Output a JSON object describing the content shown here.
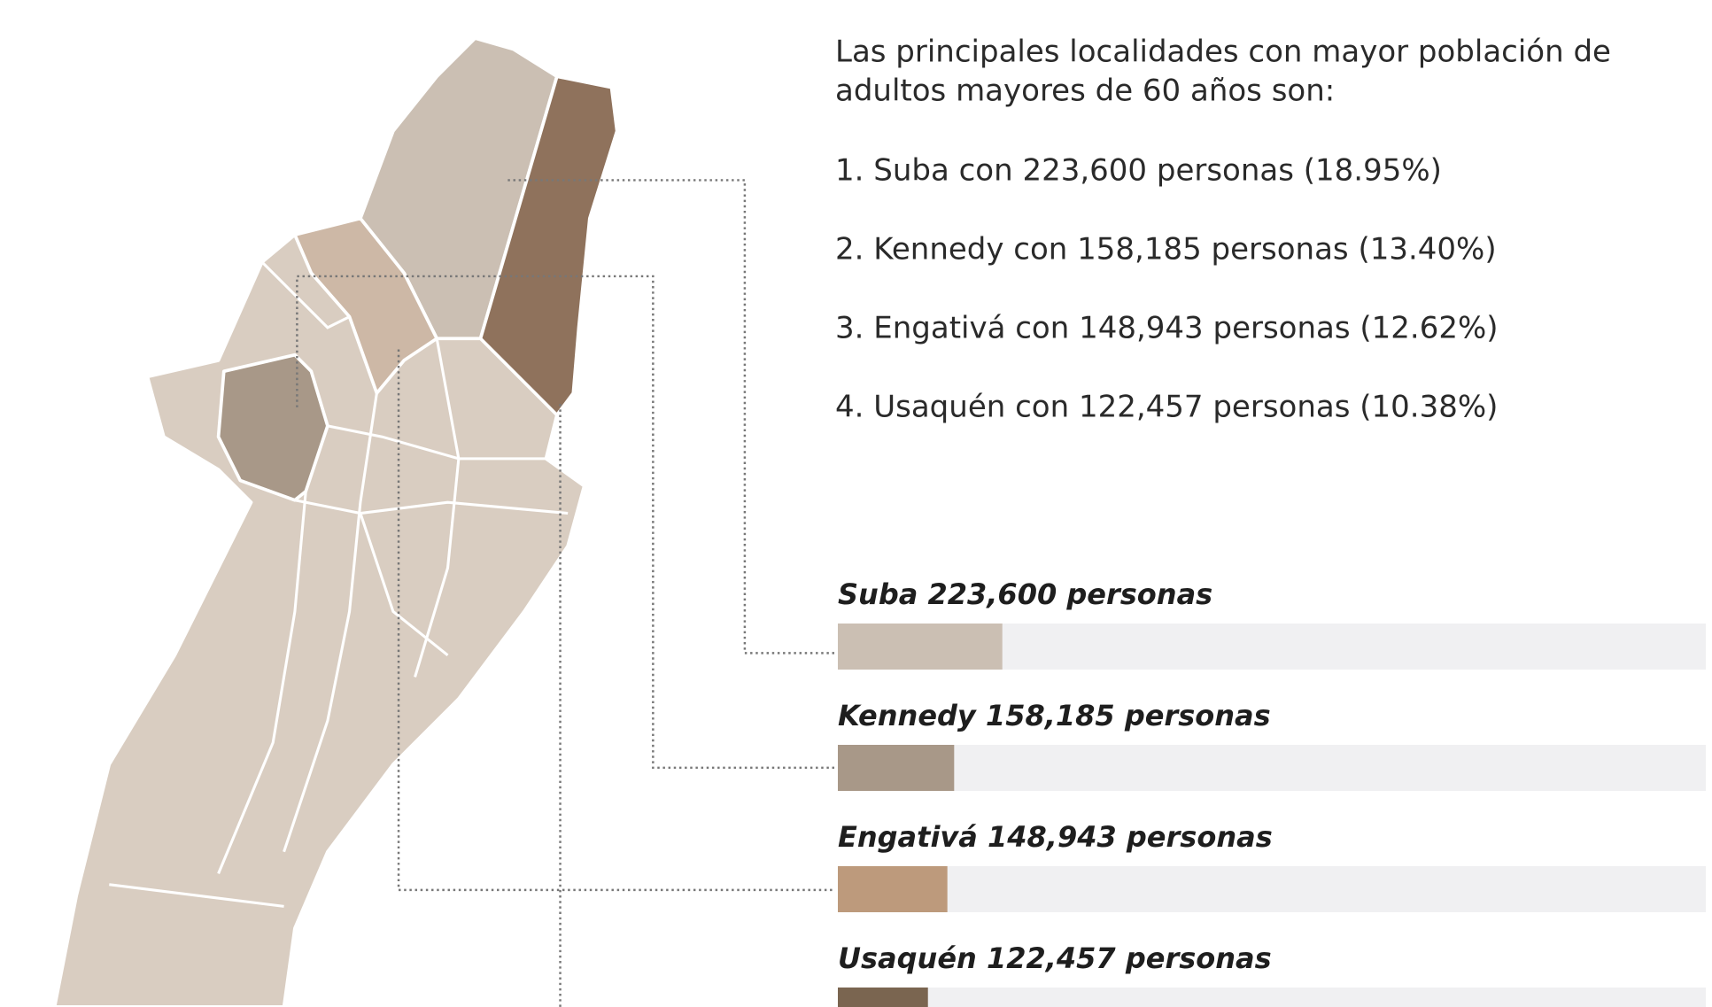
{
  "chart_data": {
    "type": "bar",
    "title": [
      "Las principales localidades con mayor población de",
      "adultos mayores de 60 años son:"
    ],
    "items": [
      "1. Suba con 223,600 personas (18.95%)",
      "2. Kennedy con 158,185 personas (13.40%)",
      "3. Engativá con 148,943 personas (12.62%)",
      "4. Usaquén con 122,457 personas (10.38%)"
    ],
    "categories": [
      "Suba 223,600 personas",
      "Kennedy 158,185 personas",
      "Engativá 148,943 personas",
      "Usaquén 122,457 personas"
    ],
    "values": [
      18.95,
      13.4,
      12.62,
      10.38
    ],
    "colors": [
      "#cbbfb3",
      "#a89888",
      "#bd9a7c",
      "#7a6550"
    ],
    "xlim": [
      0,
      100
    ]
  }
}
